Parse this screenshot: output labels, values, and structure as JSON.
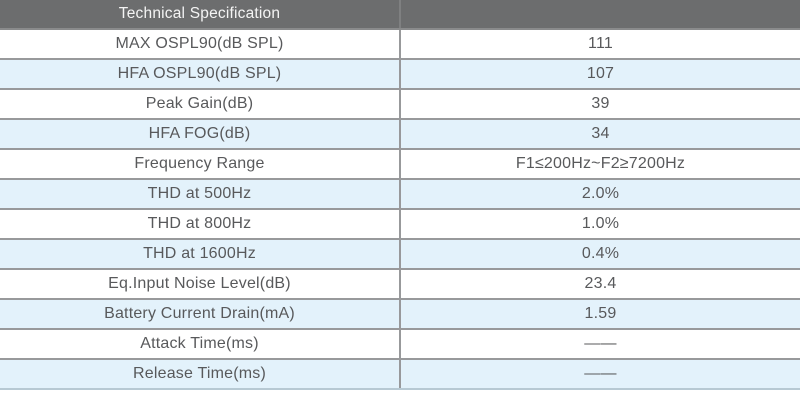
{
  "table": {
    "title": "Technical Specification",
    "header_value": "",
    "rows": [
      {
        "label": "MAX OSPL90(dB SPL)",
        "value": "111"
      },
      {
        "label": "HFA OSPL90(dB SPL)",
        "value": "107"
      },
      {
        "label": "Peak Gain(dB)",
        "value": "39"
      },
      {
        "label": "HFA FOG(dB)",
        "value": "34"
      },
      {
        "label": "Frequency Range",
        "value": "F1≤200Hz~F2≥7200Hz"
      },
      {
        "label": "THD at 500Hz",
        "value": "2.0%"
      },
      {
        "label": "THD at 800Hz",
        "value": "1.0%"
      },
      {
        "label": "THD at 1600Hz",
        "value": "0.4%"
      },
      {
        "label": "Eq.Input Noise Level(dB)",
        "value": "23.4"
      },
      {
        "label": "Battery Current Drain(mA)",
        "value": "1.59"
      },
      {
        "label": "Attack Time(ms)",
        "value": "——"
      },
      {
        "label": "Release Time(ms)",
        "value": "——"
      }
    ],
    "colors": {
      "header_bg": "#6c6d6e",
      "header_text": "#f4f4f4",
      "row_alt_bg": "#e3f2fb",
      "row_bg": "#ffffff",
      "border": "#98999b",
      "bottom_border": "#b7c9d3",
      "text": "#58595b"
    }
  }
}
